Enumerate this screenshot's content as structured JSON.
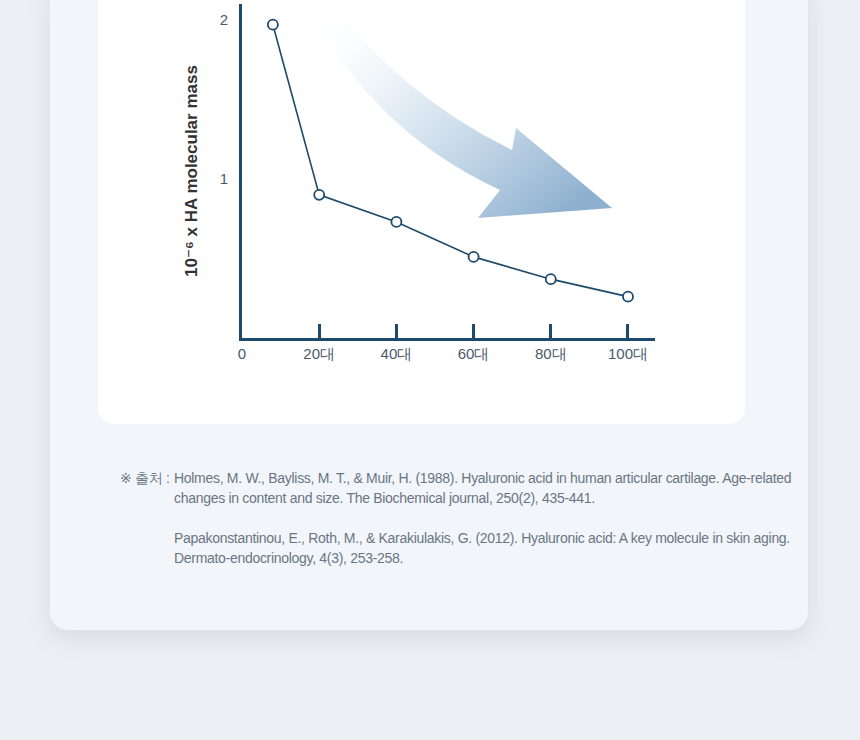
{
  "chart_data": {
    "type": "line",
    "x": [
      8,
      20,
      40,
      60,
      80,
      100
    ],
    "values": [
      1.97,
      0.9,
      0.73,
      0.51,
      0.37,
      0.26
    ],
    "color": "#1d4a6b",
    "marker": "hollow",
    "ylabel": "10⁻⁶ x HA molecular mass",
    "xlim": [
      0,
      107
    ],
    "xticks": [
      0,
      {
        "value": 20,
        "label": "20대"
      },
      {
        "value": 40,
        "label": "40대"
      },
      {
        "value": 60,
        "label": "60대"
      },
      {
        "value": 80,
        "label": "80대"
      },
      {
        "value": 100,
        "label": "100대"
      }
    ],
    "ylim": [
      0,
      2.1
    ],
    "yticks": [
      1,
      2
    ],
    "grid": false
  },
  "sources": {
    "label": "※ 출처 :",
    "items": [
      "Holmes, M. W., Bayliss, M. T., & Muir, H. (1988). Hyaluronic acid in human articular cartilage. Age-related changes in content and size. The Biochemical journal, 250(2), 435-441.",
      "Papakonstantinou, E., Roth, M., & Karakiulakis, G. (2012). Hyaluronic acid: A key molecule in skin aging. Dermato-endocrinology, 4(3), 253-258."
    ]
  }
}
